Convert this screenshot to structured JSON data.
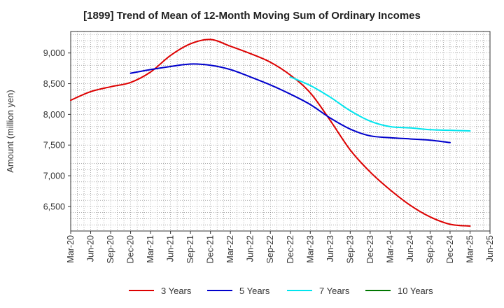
{
  "chart_data": {
    "type": "line",
    "title": "[1899]  Trend of Mean of 12-Month Moving Sum of Ordinary Incomes",
    "ylabel": "Amount (million yen)",
    "xlabel": "",
    "ylim": [
      6100,
      9350
    ],
    "yticks": [
      6500,
      7000,
      7500,
      8000,
      8500,
      9000
    ],
    "ytick_labels": [
      "6,500",
      "7,000",
      "7,500",
      "8,000",
      "8,500",
      "9,000"
    ],
    "x_labels": [
      "Mar-20",
      "Jun-20",
      "Sep-20",
      "Dec-20",
      "Mar-21",
      "Jun-21",
      "Sep-21",
      "Dec-21",
      "Mar-22",
      "Jun-22",
      "Sep-22",
      "Dec-22",
      "Mar-23",
      "Jun-23",
      "Sep-23",
      "Dec-23",
      "Mar-24",
      "Jun-24",
      "Sep-24",
      "Dec-24",
      "Mar-25",
      "Jun-25"
    ],
    "series": [
      {
        "name": "3 Years",
        "color": "#dd0000",
        "start_index": 0,
        "values": [
          8230,
          8370,
          8450,
          8520,
          8690,
          8960,
          9150,
          9220,
          9110,
          8990,
          8850,
          8640,
          8350,
          7900,
          7420,
          7060,
          6770,
          6520,
          6330,
          6210,
          6180
        ]
      },
      {
        "name": "5 Years",
        "color": "#0000cc",
        "start_index": 3,
        "values": [
          8670,
          8730,
          8780,
          8820,
          8800,
          8730,
          8610,
          8480,
          8330,
          8160,
          7940,
          7760,
          7650,
          7620,
          7600,
          7580,
          7540
        ]
      },
      {
        "name": "7 Years",
        "color": "#00e5ee",
        "start_index": 11,
        "values": [
          8610,
          8470,
          8280,
          8060,
          7890,
          7800,
          7780,
          7750,
          7740,
          7730
        ]
      },
      {
        "name": "10 Years",
        "color": "#007700",
        "start_index": 0,
        "values": []
      }
    ]
  }
}
